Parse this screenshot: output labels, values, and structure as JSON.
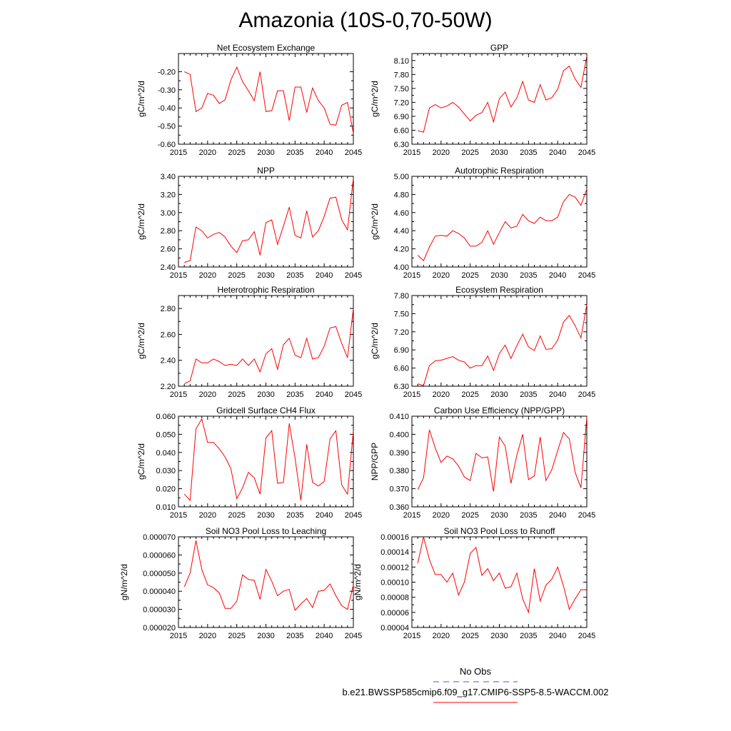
{
  "page_title": "Amazonia (10S-0,70-50W)",
  "legend": {
    "obs_label": "No Obs",
    "obs_color": "#5555cc",
    "case_label": "b.e21.BWSSP585cmip6.f09_g17.CMIP6-SSP5-8.5-WACCM.002",
    "case_color": "#ff0000"
  },
  "chart_data": [
    {
      "type": "line",
      "title": "Net Ecosystem Exchange",
      "ylabel": "gC/m^2/d",
      "xlabel": "",
      "xlim": [
        2015,
        2045
      ],
      "xticks": [
        2015,
        2020,
        2025,
        2030,
        2035,
        2040,
        2045
      ],
      "ylim": [
        -0.6,
        -0.1
      ],
      "yticks": [
        -0.6,
        -0.5,
        -0.4,
        -0.3,
        -0.2
      ],
      "ytick_labels": [
        "-0.60",
        "-0.50",
        "-0.40",
        "-0.30",
        "-0.20"
      ],
      "x": [
        2016,
        2017,
        2018,
        2019,
        2020,
        2021,
        2022,
        2023,
        2024,
        2025,
        2026,
        2027,
        2028,
        2029,
        2030,
        2031,
        2032,
        2033,
        2034,
        2035,
        2036,
        2037,
        2038,
        2039,
        2040,
        2041,
        2042,
        2043,
        2044,
        2045
      ],
      "values": [
        -0.2,
        -0.215,
        -0.42,
        -0.4,
        -0.32,
        -0.33,
        -0.375,
        -0.355,
        -0.245,
        -0.175,
        -0.255,
        -0.305,
        -0.36,
        -0.2,
        -0.42,
        -0.415,
        -0.305,
        -0.305,
        -0.47,
        -0.285,
        -0.285,
        -0.425,
        -0.29,
        -0.36,
        -0.4,
        -0.49,
        -0.495,
        -0.385,
        -0.37,
        -0.54
      ]
    },
    {
      "type": "line",
      "title": "GPP",
      "ylabel": "gC/m^2/d",
      "xlabel": "",
      "xlim": [
        2015,
        2045
      ],
      "xticks": [
        2015,
        2020,
        2025,
        2030,
        2035,
        2040,
        2045
      ],
      "ylim": [
        6.3,
        8.25
      ],
      "yticks": [
        6.3,
        6.6,
        6.9,
        7.2,
        7.5,
        7.8,
        8.1
      ],
      "ytick_labels": [
        "6.30",
        "6.60",
        "6.90",
        "7.20",
        "7.50",
        "7.80",
        "8.10"
      ],
      "x": [
        2016,
        2017,
        2018,
        2019,
        2020,
        2021,
        2022,
        2023,
        2024,
        2025,
        2026,
        2027,
        2028,
        2029,
        2030,
        2031,
        2032,
        2033,
        2034,
        2035,
        2036,
        2037,
        2038,
        2039,
        2040,
        2041,
        2042,
        2043,
        2044,
        2045
      ],
      "values": [
        6.59,
        6.56,
        7.08,
        7.15,
        7.08,
        7.12,
        7.2,
        7.1,
        6.95,
        6.8,
        6.92,
        6.98,
        7.2,
        6.78,
        7.28,
        7.42,
        7.1,
        7.3,
        7.65,
        7.25,
        7.2,
        7.58,
        7.25,
        7.3,
        7.48,
        7.88,
        7.98,
        7.7,
        7.52,
        8.2
      ]
    },
    {
      "type": "line",
      "title": "NPP",
      "ylabel": "gC/m^2/d",
      "xlabel": "",
      "xlim": [
        2015,
        2045
      ],
      "xticks": [
        2015,
        2020,
        2025,
        2030,
        2035,
        2040,
        2045
      ],
      "ylim": [
        2.4,
        3.4
      ],
      "yticks": [
        2.4,
        2.6,
        2.8,
        3.0,
        3.2,
        3.4
      ],
      "ytick_labels": [
        "2.40",
        "2.60",
        "2.80",
        "3.00",
        "3.20",
        "3.40"
      ],
      "x": [
        2016,
        2017,
        2018,
        2019,
        2020,
        2021,
        2022,
        2023,
        2024,
        2025,
        2026,
        2027,
        2028,
        2029,
        2030,
        2031,
        2032,
        2033,
        2034,
        2035,
        2036,
        2037,
        2038,
        2039,
        2040,
        2041,
        2042,
        2043,
        2044,
        2045
      ],
      "values": [
        2.45,
        2.47,
        2.84,
        2.8,
        2.72,
        2.76,
        2.78,
        2.73,
        2.63,
        2.56,
        2.69,
        2.7,
        2.79,
        2.53,
        2.89,
        2.92,
        2.65,
        2.85,
        3.06,
        2.75,
        2.72,
        3.02,
        2.73,
        2.8,
        2.96,
        3.16,
        3.17,
        2.92,
        2.81,
        3.38
      ]
    },
    {
      "type": "line",
      "title": "Autotrophic Respiration",
      "ylabel": "gC/m^2/d",
      "xlabel": "",
      "xlim": [
        2015,
        2045
      ],
      "xticks": [
        2015,
        2020,
        2025,
        2030,
        2035,
        2040,
        2045
      ],
      "ylim": [
        4.0,
        5.0
      ],
      "yticks": [
        4.0,
        4.2,
        4.4,
        4.6,
        4.8,
        5.0
      ],
      "ytick_labels": [
        "4.00",
        "4.20",
        "4.40",
        "4.60",
        "4.80",
        "5.00"
      ],
      "x": [
        2016,
        2017,
        2018,
        2019,
        2020,
        2021,
        2022,
        2023,
        2024,
        2025,
        2026,
        2027,
        2028,
        2029,
        2030,
        2031,
        2032,
        2033,
        2034,
        2035,
        2036,
        2037,
        2038,
        2039,
        2040,
        2041,
        2042,
        2043,
        2044,
        2045
      ],
      "values": [
        4.13,
        4.07,
        4.22,
        4.34,
        4.35,
        4.34,
        4.4,
        4.37,
        4.32,
        4.23,
        4.23,
        4.27,
        4.4,
        4.25,
        4.38,
        4.5,
        4.43,
        4.45,
        4.58,
        4.51,
        4.48,
        4.55,
        4.51,
        4.51,
        4.55,
        4.72,
        4.8,
        4.77,
        4.68,
        4.86
      ]
    },
    {
      "type": "line",
      "title": "Heterotrophic Respiration",
      "ylabel": "gC/m^2/d",
      "xlabel": "",
      "xlim": [
        2015,
        2045
      ],
      "xticks": [
        2015,
        2020,
        2025,
        2030,
        2035,
        2040,
        2045
      ],
      "ylim": [
        2.2,
        2.9
      ],
      "yticks": [
        2.2,
        2.4,
        2.6,
        2.8
      ],
      "ytick_labels": [
        "2.20",
        "2.40",
        "2.60",
        "2.80"
      ],
      "x": [
        2016,
        2017,
        2018,
        2019,
        2020,
        2021,
        2022,
        2023,
        2024,
        2025,
        2026,
        2027,
        2028,
        2029,
        2030,
        2031,
        2032,
        2033,
        2034,
        2035,
        2036,
        2037,
        2038,
        2039,
        2040,
        2041,
        2042,
        2043,
        2044,
        2045
      ],
      "values": [
        2.22,
        2.24,
        2.41,
        2.38,
        2.38,
        2.41,
        2.39,
        2.36,
        2.37,
        2.36,
        2.41,
        2.36,
        2.41,
        2.31,
        2.45,
        2.49,
        2.33,
        2.52,
        2.57,
        2.44,
        2.42,
        2.57,
        2.41,
        2.42,
        2.51,
        2.65,
        2.66,
        2.53,
        2.42,
        2.8
      ]
    },
    {
      "type": "line",
      "title": "Ecosystem Respiration",
      "ylabel": "gC/m^2/d",
      "xlabel": "",
      "xlim": [
        2015,
        2045
      ],
      "xticks": [
        2015,
        2020,
        2025,
        2030,
        2035,
        2040,
        2045
      ],
      "ylim": [
        6.3,
        7.8
      ],
      "yticks": [
        6.3,
        6.6,
        6.9,
        7.2,
        7.5,
        7.8
      ],
      "ytick_labels": [
        "6.30",
        "6.60",
        "6.90",
        "7.20",
        "7.50",
        "7.80"
      ],
      "x": [
        2016,
        2017,
        2018,
        2019,
        2020,
        2021,
        2022,
        2023,
        2024,
        2025,
        2026,
        2027,
        2028,
        2029,
        2030,
        2031,
        2032,
        2033,
        2034,
        2035,
        2036,
        2037,
        2038,
        2039,
        2040,
        2041,
        2042,
        2043,
        2044,
        2045
      ],
      "values": [
        6.34,
        6.31,
        6.64,
        6.72,
        6.73,
        6.76,
        6.79,
        6.73,
        6.7,
        6.6,
        6.64,
        6.64,
        6.8,
        6.56,
        6.84,
        6.98,
        6.76,
        6.97,
        7.16,
        6.95,
        6.89,
        7.13,
        6.91,
        6.92,
        7.06,
        7.36,
        7.47,
        7.3,
        7.1,
        7.65
      ]
    },
    {
      "type": "line",
      "title": "Gridcell Surface CH4 Flux",
      "ylabel": "gC/m^2/d",
      "xlabel": "",
      "xlim": [
        2015,
        2045
      ],
      "xticks": [
        2015,
        2020,
        2025,
        2030,
        2035,
        2040,
        2045
      ],
      "ylim": [
        0.01,
        0.06
      ],
      "yticks": [
        0.01,
        0.02,
        0.03,
        0.04,
        0.05,
        0.06
      ],
      "ytick_labels": [
        "0.010",
        "0.020",
        "0.030",
        "0.040",
        "0.050",
        "0.060"
      ],
      "x": [
        2016,
        2017,
        2018,
        2019,
        2020,
        2021,
        2022,
        2023,
        2024,
        2025,
        2026,
        2027,
        2028,
        2029,
        2030,
        2031,
        2032,
        2033,
        2034,
        2035,
        2036,
        2037,
        2038,
        2039,
        2040,
        2041,
        2042,
        2043,
        2044,
        2045
      ],
      "values": [
        0.017,
        0.0135,
        0.053,
        0.0585,
        0.0455,
        0.0455,
        0.042,
        0.0375,
        0.031,
        0.0145,
        0.0205,
        0.029,
        0.026,
        0.017,
        0.048,
        0.052,
        0.023,
        0.0235,
        0.056,
        0.037,
        0.0135,
        0.0445,
        0.0235,
        0.0215,
        0.024,
        0.0475,
        0.052,
        0.022,
        0.017,
        0.052
      ]
    },
    {
      "type": "line",
      "title": "Carbon Use Efficiency (NPP/GPP)",
      "ylabel": "NPP/GPP",
      "xlabel": "",
      "xlim": [
        2015,
        2045
      ],
      "xticks": [
        2015,
        2020,
        2025,
        2030,
        2035,
        2040,
        2045
      ],
      "ylim": [
        0.36,
        0.41
      ],
      "yticks": [
        0.36,
        0.37,
        0.38,
        0.39,
        0.4,
        0.41
      ],
      "ytick_labels": [
        "0.360",
        "0.370",
        "0.380",
        "0.390",
        "0.400",
        "0.410"
      ],
      "x": [
        2016,
        2017,
        2018,
        2019,
        2020,
        2021,
        2022,
        2023,
        2024,
        2025,
        2026,
        2027,
        2028,
        2029,
        2030,
        2031,
        2032,
        2033,
        2034,
        2035,
        2036,
        2037,
        2038,
        2039,
        2040,
        2041,
        2042,
        2043,
        2044,
        2045
      ],
      "values": [
        0.3695,
        0.376,
        0.4025,
        0.3925,
        0.3845,
        0.388,
        0.3865,
        0.3825,
        0.3765,
        0.3745,
        0.3895,
        0.387,
        0.3875,
        0.3685,
        0.3985,
        0.3935,
        0.373,
        0.3885,
        0.4,
        0.375,
        0.377,
        0.3985,
        0.3745,
        0.3805,
        0.391,
        0.401,
        0.3975,
        0.379,
        0.3705,
        0.4095
      ]
    },
    {
      "type": "line",
      "title": "Soil NO3 Pool Loss to Leaching",
      "ylabel": "gN/m^2/d",
      "xlabel": "",
      "xlim": [
        2015,
        2045
      ],
      "xticks": [
        2015,
        2020,
        2025,
        2030,
        2035,
        2040,
        2045
      ],
      "ylim": [
        2e-05,
        7e-05
      ],
      "yticks": [
        2e-05,
        3e-05,
        4e-05,
        5e-05,
        6e-05,
        7e-05
      ],
      "ytick_labels": [
        "0.000020",
        "0.000030",
        "0.000040",
        "0.000050",
        "0.000060",
        "0.000070"
      ],
      "x": [
        2016,
        2017,
        2018,
        2019,
        2020,
        2021,
        2022,
        2023,
        2024,
        2025,
        2026,
        2027,
        2028,
        2029,
        2030,
        2031,
        2032,
        2033,
        2034,
        2035,
        2036,
        2037,
        2038,
        2039,
        2040,
        2041,
        2042,
        2043,
        2044,
        2045
      ],
      "values": [
        4.25e-05,
        5e-05,
        6.8e-05,
        5.2e-05,
        4.35e-05,
        4.2e-05,
        3.9e-05,
        3.05e-05,
        3.05e-05,
        3.45e-05,
        4.9e-05,
        4.65e-05,
        4.6e-05,
        3.55e-05,
        5.2e-05,
        4.55e-05,
        3.75e-05,
        4e-05,
        4.1e-05,
        2.95e-05,
        3.3e-05,
        3.6e-05,
        3.1e-05,
        4e-05,
        4.05e-05,
        4.4e-05,
        3.75e-05,
        3.2e-05,
        3e-05,
        4.35e-05
      ]
    },
    {
      "type": "line",
      "title": "Soil NO3 Pool Loss to Runoff",
      "ylabel": "gN/m^2/d",
      "xlabel": "",
      "xlim": [
        2015,
        2045
      ],
      "xticks": [
        2015,
        2020,
        2025,
        2030,
        2035,
        2040,
        2045
      ],
      "ylim": [
        4e-05,
        0.00016
      ],
      "yticks": [
        4e-05,
        6e-05,
        8e-05,
        0.0001,
        0.00012,
        0.00014,
        0.00016
      ],
      "ytick_labels": [
        "0.00004",
        "0.00006",
        "0.00008",
        "0.00010",
        "0.00012",
        "0.00014",
        "0.00016"
      ],
      "x": [
        2016,
        2017,
        2018,
        2019,
        2020,
        2021,
        2022,
        2023,
        2024,
        2025,
        2026,
        2027,
        2028,
        2029,
        2030,
        2031,
        2032,
        2033,
        2034,
        2035,
        2036,
        2037,
        2038,
        2039,
        2040,
        2041,
        2042,
        2043,
        2044,
        2045
      ],
      "values": [
        0.000125,
        0.00016,
        0.00013,
        0.00011,
        0.00011,
        0.0001,
        0.000112,
        8.3e-05,
        0.0001,
        0.000138,
        0.000146,
        0.000109,
        0.000118,
        0.000102,
        0.000112,
        9.2e-05,
        9.4e-05,
        0.000112,
        7.8e-05,
        6e-05,
        0.000118,
        7.5e-05,
        9.6e-05,
        0.000104,
        0.00012,
        9.5e-05,
        6.4e-05,
        7.8e-05,
        9e-05,
        9e-05
      ]
    }
  ]
}
